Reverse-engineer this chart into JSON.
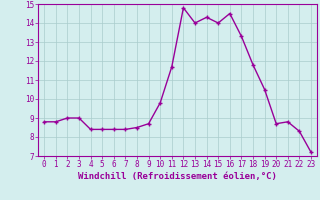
{
  "x": [
    0,
    1,
    2,
    3,
    4,
    5,
    6,
    7,
    8,
    9,
    10,
    11,
    12,
    13,
    14,
    15,
    16,
    17,
    18,
    19,
    20,
    21,
    22,
    23
  ],
  "y": [
    8.8,
    8.8,
    9.0,
    9.0,
    8.4,
    8.4,
    8.4,
    8.4,
    8.5,
    8.7,
    9.8,
    11.7,
    14.8,
    14.0,
    14.3,
    14.0,
    14.5,
    13.3,
    11.8,
    10.5,
    8.7,
    8.8,
    8.3,
    7.2
  ],
  "line_color": "#990099",
  "marker": "+",
  "marker_color": "#990099",
  "bg_color": "#d4eeee",
  "grid_color": "#aacccc",
  "xlabel": "Windchill (Refroidissement éolien,°C)",
  "xlabel_color": "#990099",
  "tick_color": "#990099",
  "spine_color": "#990099",
  "ylim": [
    7,
    15
  ],
  "xlim": [
    -0.5,
    23.5
  ],
  "yticks": [
    7,
    8,
    9,
    10,
    11,
    12,
    13,
    14,
    15
  ],
  "xticks": [
    0,
    1,
    2,
    3,
    4,
    5,
    6,
    7,
    8,
    9,
    10,
    11,
    12,
    13,
    14,
    15,
    16,
    17,
    18,
    19,
    20,
    21,
    22,
    23
  ],
  "linewidth": 1.0,
  "markersize": 3.5,
  "tick_fontsize": 5.5,
  "xlabel_fontsize": 6.5
}
